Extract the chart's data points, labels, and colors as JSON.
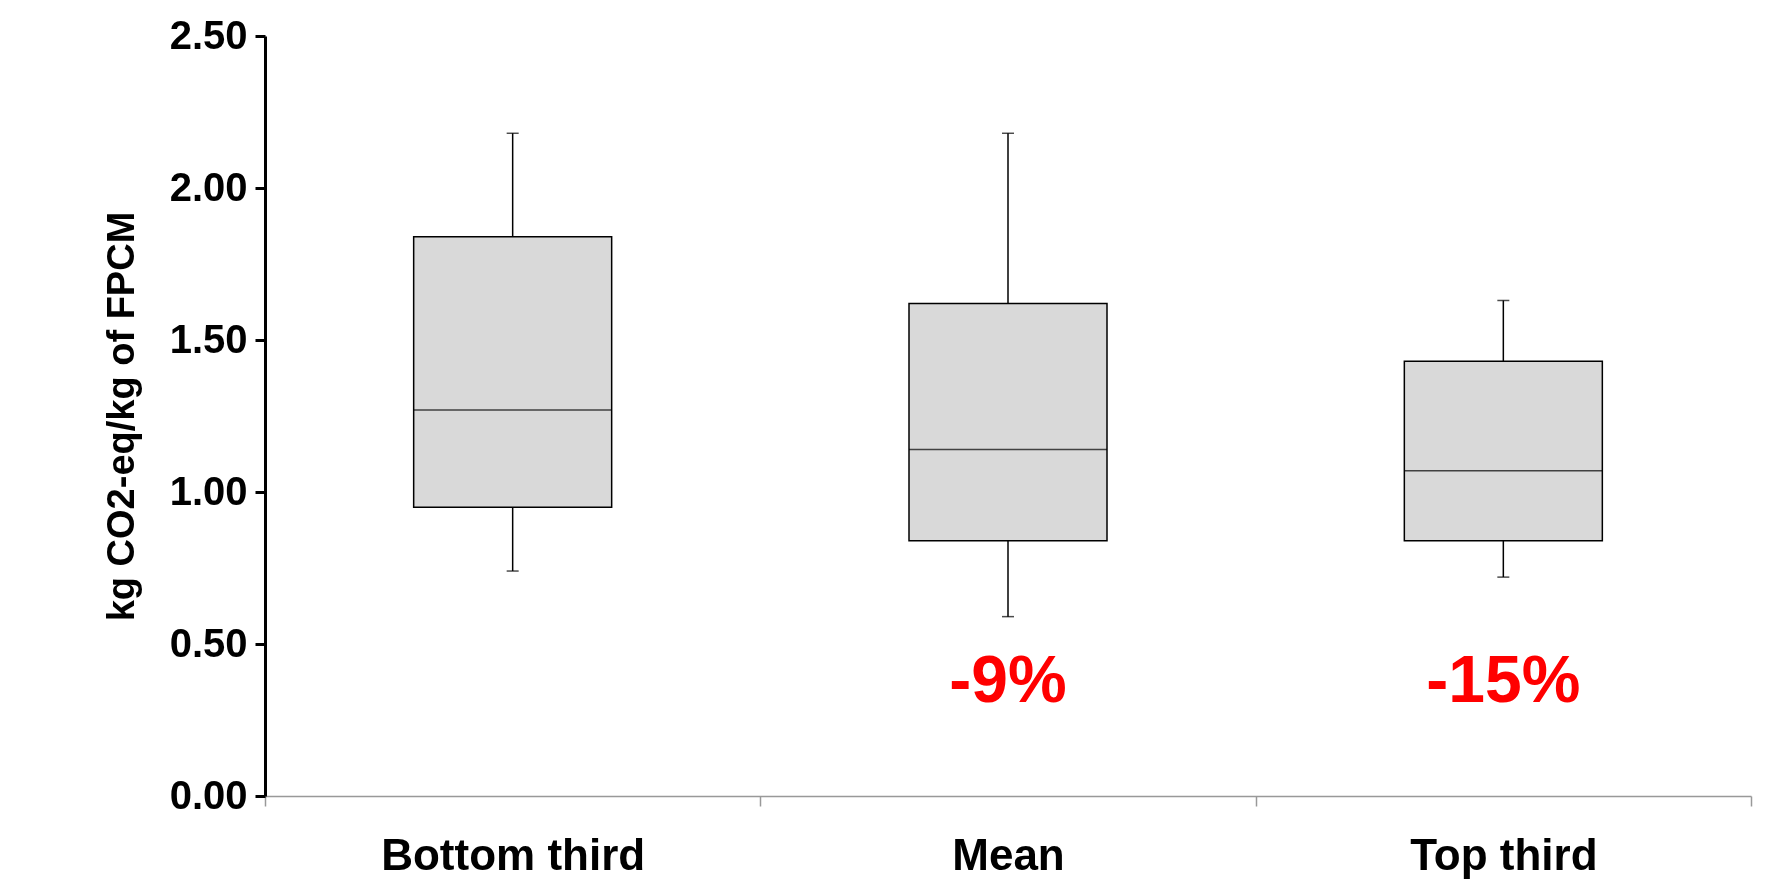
{
  "chart_data": {
    "type": "box",
    "categories": [
      "Bottom third",
      "Mean",
      "Top third"
    ],
    "series": [
      {
        "color": "#d9d9d9",
        "boxes": [
          {
            "low": 0.74,
            "q1": 0.95,
            "median": 1.27,
            "q3": 1.84,
            "high": 2.18
          },
          {
            "low": 0.59,
            "q1": 0.84,
            "median": 1.14,
            "q3": 1.62,
            "high": 2.18
          },
          {
            "low": 0.72,
            "q1": 0.84,
            "median": 1.07,
            "q3": 1.43,
            "high": 1.63
          }
        ]
      }
    ],
    "ylabel": "kg CO2-eq/kg of FPCM",
    "ylim": [
      0,
      2.5
    ],
    "yticks": [
      {
        "value": 0,
        "label": "0.00"
      },
      {
        "value": 0.5,
        "label": "0.50"
      },
      {
        "value": 1,
        "label": "1.00"
      },
      {
        "value": 1.5,
        "label": "1.50"
      },
      {
        "value": 2,
        "label": "2.00"
      },
      {
        "value": 2.5,
        "label": "2.50"
      }
    ],
    "annotations": [
      "-9%",
      "-15%"
    ]
  }
}
